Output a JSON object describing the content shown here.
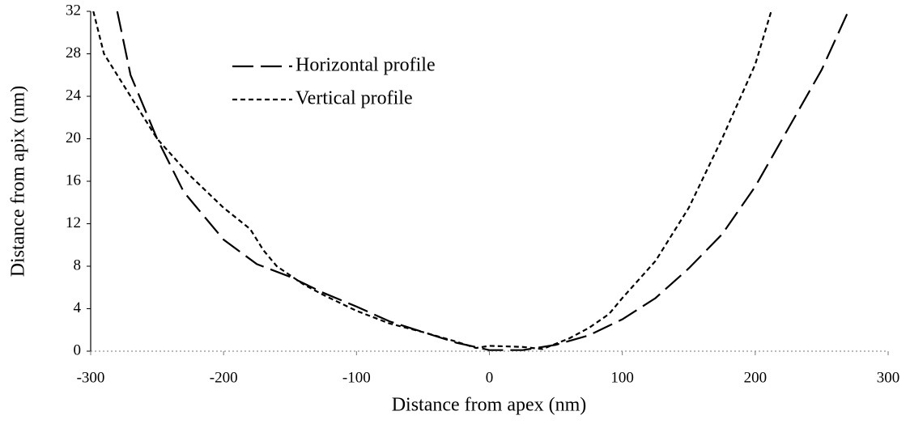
{
  "chart_data": {
    "type": "line",
    "xlabel": "Distance from apex (nm)",
    "ylabel": "Distance from apix (nm)",
    "xlim": [
      -300,
      300
    ],
    "xticks": [
      -300,
      -200,
      -100,
      0,
      100,
      200,
      300
    ],
    "ylim": [
      0,
      32
    ],
    "yticks": [
      0,
      4,
      8,
      12,
      16,
      20,
      24,
      28,
      32
    ],
    "legend": "top-left",
    "series": [
      {
        "name": "Horizontal profile",
        "color": "#000000",
        "dash": "long",
        "x": [
          -280,
          -270,
          -250,
          -230,
          -200,
          -175,
          -150,
          -125,
          -100,
          -75,
          -50,
          -25,
          0,
          25,
          50,
          75,
          100,
          125,
          150,
          175,
          200,
          225,
          250,
          270
        ],
        "values": [
          32,
          26,
          20,
          15,
          10.5,
          8.2,
          7,
          5.5,
          4.2,
          2.8,
          1.8,
          0.8,
          0.1,
          0.1,
          0.6,
          1.5,
          3,
          5,
          7.8,
          11,
          15.5,
          21,
          26.5,
          32
        ]
      },
      {
        "name": "Vertical profile",
        "color": "#000000",
        "dash": "short",
        "x": [
          -298,
          -290,
          -270,
          -250,
          -225,
          -200,
          -180,
          -170,
          -160,
          -140,
          -125,
          -100,
          -75,
          -50,
          -25,
          -10,
          0,
          25,
          40,
          60,
          75,
          90,
          100,
          125,
          150,
          175,
          200,
          212
        ],
        "values": [
          32,
          28,
          24,
          20,
          16.5,
          13.5,
          11.5,
          9.5,
          8,
          6.3,
          5.3,
          3.8,
          2.6,
          1.8,
          0.9,
          0.3,
          0.5,
          0.4,
          0.2,
          1.2,
          2.2,
          3.5,
          5,
          8.5,
          13.5,
          20,
          27,
          32
        ]
      }
    ]
  }
}
